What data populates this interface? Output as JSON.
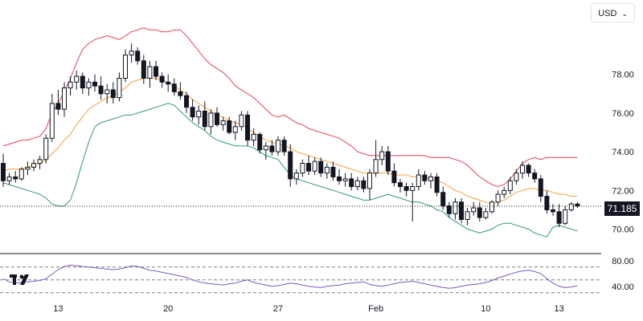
{
  "currency_selector": {
    "label": "USD"
  },
  "logo": {
    "icon": "tradingview-logo-icon"
  },
  "colors": {
    "candle": "#131722",
    "upper_band": "#e84057",
    "basis": "#f2a03a",
    "lower_band": "#2f9a7c",
    "rsi_line": "#7e57c2",
    "grid": "#e8e8e8",
    "divider": "#131722"
  },
  "last_price": {
    "value": "71.185"
  },
  "chart_data": [
    {
      "type": "candlestick",
      "indicator": "Bollinger Bands",
      "ylim": [
        69.4,
        80.6
      ],
      "y_ticks": [
        "70.00",
        "72.00",
        "74.00",
        "76.00",
        "78.00"
      ],
      "x_ticks": [
        "13",
        "20",
        "27",
        "Feb",
        "10",
        "13"
      ],
      "grid": false,
      "candles": [
        [
          73.4,
          73.9,
          72.2,
          72.5
        ],
        [
          72.5,
          72.9,
          72.3,
          72.7
        ],
        [
          72.7,
          73.0,
          72.4,
          72.6
        ],
        [
          72.6,
          73.2,
          72.5,
          73.1
        ],
        [
          73.1,
          73.5,
          72.8,
          73.2
        ],
        [
          73.2,
          73.6,
          73.0,
          73.4
        ],
        [
          73.4,
          73.8,
          73.1,
          73.6
        ],
        [
          73.6,
          74.9,
          73.4,
          74.7
        ],
        [
          74.7,
          77.0,
          74.5,
          76.5
        ],
        [
          76.5,
          77.2,
          75.9,
          76.2
        ],
        [
          76.2,
          77.6,
          75.8,
          77.3
        ],
        [
          77.3,
          77.9,
          76.9,
          77.6
        ],
        [
          77.6,
          78.2,
          77.2,
          77.9
        ],
        [
          77.9,
          78.1,
          77.0,
          77.3
        ],
        [
          77.3,
          77.8,
          76.9,
          77.6
        ],
        [
          77.6,
          78.0,
          77.1,
          77.4
        ],
        [
          77.4,
          77.9,
          76.7,
          77.0
        ],
        [
          77.0,
          77.5,
          76.5,
          77.2
        ],
        [
          77.2,
          77.6,
          76.5,
          76.8
        ],
        [
          76.8,
          78.1,
          76.6,
          77.8
        ],
        [
          77.8,
          79.3,
          77.6,
          79.0
        ],
        [
          79.0,
          79.6,
          78.6,
          79.2
        ],
        [
          79.2,
          79.4,
          78.5,
          78.7
        ],
        [
          78.7,
          79.0,
          77.5,
          77.8
        ],
        [
          77.8,
          78.7,
          77.3,
          78.4
        ],
        [
          78.4,
          78.7,
          77.7,
          77.9
        ],
        [
          77.9,
          78.1,
          77.3,
          77.6
        ],
        [
          77.6,
          78.0,
          77.1,
          77.5
        ],
        [
          77.5,
          77.8,
          76.9,
          77.1
        ],
        [
          77.1,
          77.6,
          76.7,
          76.9
        ],
        [
          76.9,
          77.1,
          76.0,
          76.3
        ],
        [
          76.3,
          76.7,
          75.6,
          75.8
        ],
        [
          75.8,
          76.4,
          75.4,
          76.1
        ],
        [
          76.1,
          76.6,
          75.1,
          75.3
        ],
        [
          75.3,
          76.2,
          74.9,
          76.0
        ],
        [
          76.0,
          76.3,
          75.3,
          75.4
        ],
        [
          75.4,
          75.8,
          75.1,
          75.6
        ],
        [
          75.6,
          75.8,
          74.9,
          75.0
        ],
        [
          75.0,
          75.6,
          74.6,
          75.3
        ],
        [
          75.3,
          76.1,
          75.1,
          75.9
        ],
        [
          75.9,
          76.1,
          74.3,
          74.6
        ],
        [
          74.6,
          75.2,
          74.3,
          74.9
        ],
        [
          74.9,
          75.0,
          73.9,
          74.1
        ],
        [
          74.1,
          74.5,
          73.6,
          74.3
        ],
        [
          74.3,
          74.6,
          73.8,
          74.0
        ],
        [
          74.0,
          74.8,
          73.8,
          74.6
        ],
        [
          74.6,
          74.8,
          73.8,
          74.0
        ],
        [
          74.0,
          74.4,
          72.2,
          72.6
        ],
        [
          72.6,
          73.1,
          72.3,
          72.9
        ],
        [
          72.9,
          73.6,
          72.7,
          73.4
        ],
        [
          73.4,
          73.8,
          72.8,
          73.0
        ],
        [
          73.0,
          73.7,
          72.8,
          73.5
        ],
        [
          73.5,
          73.7,
          72.7,
          72.9
        ],
        [
          72.9,
          73.4,
          72.6,
          73.2
        ],
        [
          73.2,
          73.5,
          72.5,
          72.7
        ],
        [
          72.7,
          73.1,
          72.3,
          72.5
        ],
        [
          72.5,
          72.9,
          72.2,
          72.6
        ],
        [
          72.6,
          72.9,
          72.0,
          72.2
        ],
        [
          72.2,
          72.7,
          72.0,
          72.5
        ],
        [
          72.5,
          72.7,
          71.9,
          72.1
        ],
        [
          72.1,
          73.1,
          71.5,
          72.9
        ],
        [
          72.9,
          74.6,
          72.7,
          73.6
        ],
        [
          73.6,
          74.3,
          73.3,
          74.0
        ],
        [
          74.0,
          74.3,
          72.8,
          73.0
        ],
        [
          73.0,
          73.4,
          72.2,
          72.4
        ],
        [
          72.4,
          72.6,
          71.9,
          72.2
        ],
        [
          72.2,
          72.4,
          71.7,
          72.0
        ],
        [
          72.0,
          72.4,
          70.4,
          72.2
        ],
        [
          72.2,
          73.1,
          72.0,
          72.8
        ],
        [
          72.8,
          73.0,
          72.3,
          72.5
        ],
        [
          72.5,
          72.9,
          72.1,
          72.7
        ],
        [
          72.7,
          72.9,
          71.7,
          71.9
        ],
        [
          71.9,
          72.2,
          71.0,
          71.2
        ],
        [
          71.2,
          71.4,
          70.6,
          70.8
        ],
        [
          70.8,
          71.6,
          70.5,
          71.4
        ],
        [
          71.4,
          71.6,
          70.3,
          70.5
        ],
        [
          70.5,
          71.1,
          70.2,
          70.9
        ],
        [
          70.9,
          71.4,
          70.7,
          71.1
        ],
        [
          71.1,
          71.4,
          70.4,
          70.6
        ],
        [
          70.6,
          71.1,
          70.5,
          70.9
        ],
        [
          70.9,
          71.5,
          70.8,
          71.4
        ],
        [
          71.4,
          72.0,
          71.2,
          71.8
        ],
        [
          71.8,
          72.2,
          71.6,
          72.0
        ],
        [
          72.0,
          72.7,
          71.8,
          72.5
        ],
        [
          72.5,
          73.1,
          72.3,
          72.9
        ],
        [
          72.9,
          73.5,
          72.6,
          73.3
        ],
        [
          73.3,
          73.4,
          72.7,
          72.9
        ],
        [
          72.9,
          73.1,
          72.4,
          72.6
        ],
        [
          72.6,
          72.8,
          71.4,
          71.7
        ],
        [
          71.7,
          72.0,
          70.8,
          71.0
        ],
        [
          71.0,
          71.3,
          70.7,
          70.9
        ],
        [
          70.9,
          71.3,
          70.1,
          70.3
        ],
        [
          70.3,
          71.2,
          70.2,
          71.0
        ],
        [
          71.0,
          71.4,
          70.9,
          71.3
        ],
        [
          71.3,
          71.4,
          71.1,
          71.2
        ]
      ],
      "bands": {
        "upper": [
          74.3,
          74.4,
          74.5,
          74.6,
          74.6,
          74.7,
          74.8,
          75.2,
          76.0,
          76.5,
          77.1,
          77.8,
          78.6,
          79.3,
          79.6,
          79.8,
          79.9,
          80.0,
          79.9,
          79.8,
          80.0,
          80.2,
          80.3,
          80.4,
          80.3,
          80.3,
          80.2,
          80.2,
          80.3,
          80.3,
          80.0,
          79.6,
          79.2,
          78.8,
          78.5,
          78.3,
          78.1,
          77.8,
          77.4,
          77.2,
          77.0,
          76.8,
          76.5,
          76.2,
          75.9,
          75.8,
          75.9,
          75.7,
          75.5,
          75.4,
          75.2,
          75.1,
          75.0,
          74.9,
          74.8,
          74.7,
          74.5,
          74.3,
          74.0,
          73.9,
          73.8,
          73.8,
          73.8,
          73.8,
          73.8,
          73.8,
          73.8,
          73.8,
          73.8,
          73.8,
          73.7,
          73.7,
          73.7,
          73.7,
          73.6,
          73.5,
          73.3,
          73.0,
          72.7,
          72.5,
          72.3,
          72.2,
          72.3,
          72.6,
          73.0,
          73.4,
          73.6,
          73.7,
          73.6,
          73.7,
          73.7,
          73.7,
          73.7,
          73.7,
          73.7
        ],
        "basis": [
          73.0,
          73.1,
          73.1,
          73.1,
          73.2,
          73.3,
          73.4,
          73.6,
          73.9,
          74.2,
          74.6,
          74.9,
          75.4,
          75.8,
          76.2,
          76.4,
          76.6,
          76.8,
          76.9,
          77.1,
          77.3,
          77.6,
          77.7,
          77.8,
          77.8,
          77.8,
          77.7,
          77.6,
          77.4,
          77.2,
          77.0,
          76.7,
          76.5,
          76.3,
          76.1,
          75.9,
          75.8,
          75.6,
          75.5,
          75.4,
          75.2,
          75.0,
          74.8,
          74.6,
          74.5,
          74.4,
          74.3,
          74.2,
          74.0,
          73.9,
          73.8,
          73.7,
          73.6,
          73.5,
          73.4,
          73.3,
          73.2,
          73.1,
          73.0,
          72.9,
          72.9,
          72.9,
          72.9,
          72.9,
          72.8,
          72.8,
          72.8,
          72.7,
          72.7,
          72.7,
          72.6,
          72.5,
          72.4,
          72.2,
          72.0,
          71.9,
          71.7,
          71.6,
          71.5,
          71.4,
          71.3,
          71.4,
          71.5,
          71.7,
          71.9,
          72.0,
          72.1,
          72.1,
          72.0,
          72.0,
          71.9,
          71.8,
          71.8,
          71.7,
          71.7
        ],
        "lower": [
          72.4,
          72.3,
          72.2,
          72.1,
          72.0,
          71.9,
          71.8,
          71.6,
          71.3,
          71.2,
          71.2,
          71.5,
          72.4,
          73.5,
          74.5,
          75.3,
          75.5,
          75.6,
          75.7,
          75.8,
          75.9,
          75.9,
          76.0,
          76.1,
          76.2,
          76.3,
          76.4,
          76.5,
          76.4,
          76.1,
          75.8,
          75.5,
          75.3,
          75.1,
          74.8,
          74.6,
          74.5,
          74.4,
          74.3,
          74.3,
          74.3,
          74.2,
          74.0,
          73.8,
          73.7,
          73.6,
          73.2,
          72.8,
          72.6,
          72.5,
          72.4,
          72.3,
          72.2,
          72.1,
          72.0,
          71.9,
          71.8,
          71.7,
          71.6,
          71.5,
          71.5,
          71.6,
          71.7,
          71.8,
          71.7,
          71.6,
          71.5,
          71.4,
          71.4,
          71.3,
          71.2,
          71.0,
          70.9,
          70.6,
          70.4,
          70.2,
          70.0,
          69.9,
          69.8,
          69.9,
          70.0,
          70.2,
          70.3,
          70.3,
          70.2,
          70.1,
          70.0,
          69.8,
          69.7,
          69.6,
          70.1,
          70.2,
          70.1,
          70.0,
          69.9
        ]
      }
    },
    {
      "type": "line",
      "indicator": "RSI",
      "ylim": [
        26,
        86
      ],
      "y_ticks": [
        "40.00",
        "80.00"
      ],
      "levels": [
        70,
        50,
        30
      ],
      "values": [
        52,
        47,
        45,
        46,
        47,
        48,
        49,
        52,
        59,
        66,
        71,
        73,
        72,
        71,
        70,
        69,
        68,
        67,
        66,
        67,
        69,
        72,
        71,
        68,
        65,
        64,
        62,
        60,
        58,
        56,
        54,
        50,
        47,
        45,
        44,
        43,
        42,
        44,
        45,
        48,
        50,
        46,
        44,
        42,
        40,
        41,
        43,
        45,
        44,
        42,
        40,
        39,
        38,
        40,
        41,
        42,
        44,
        45,
        46,
        47,
        43,
        41,
        40,
        42,
        44,
        46,
        47,
        48,
        46,
        44,
        42,
        40,
        38,
        37,
        38,
        40,
        42,
        43,
        44,
        46,
        49,
        53,
        56,
        59,
        62,
        64,
        65,
        63,
        60,
        52,
        45,
        40,
        38,
        39,
        41
      ]
    }
  ]
}
